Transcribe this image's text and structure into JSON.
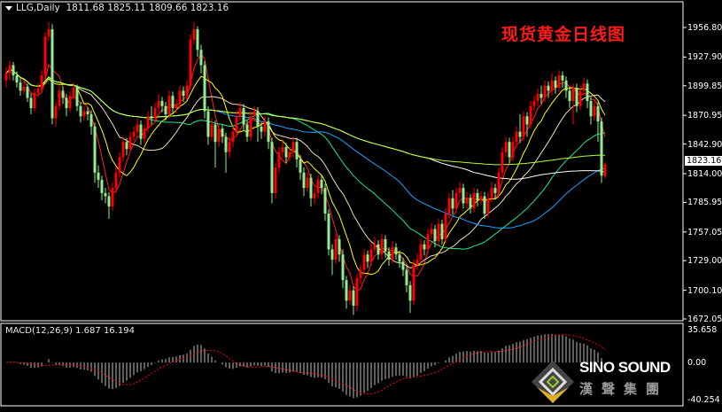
{
  "header": {
    "symbol": "LLG,Daily",
    "ohlc_text": "1811.68 1825.11 1809.66 1823.16"
  },
  "title": "现货黄金日线图",
  "current_price": "1823.16",
  "logo": {
    "brand": "SINO SOUND",
    "chinese": "漢聲集團"
  },
  "chart_data": [
    {
      "type": "candlestick",
      "title": "现货黄金日线图",
      "symbol": "LLG",
      "timeframe": "Daily",
      "y_ticks": [
        "1956.80",
        "1927.90",
        "1899.85",
        "1870.95",
        "1842.90",
        "1814.00",
        "1785.95",
        "1757.05",
        "1729.00",
        "1700.10",
        "1672.05"
      ],
      "ylim": [
        1672.05,
        1956.8
      ],
      "colors": {
        "up": "#ff0000",
        "down": "#90ee90",
        "background": "#000000",
        "axis": "#ffffff"
      },
      "overlays": [
        {
          "kind": "moving-average",
          "color": "#ff2020"
        },
        {
          "kind": "moving-average",
          "color": "#ffff00"
        },
        {
          "kind": "moving-average",
          "color": "#f5deb3"
        },
        {
          "kind": "moving-average",
          "color": "#1ee68c"
        },
        {
          "kind": "moving-average",
          "color": "#1ea0ff"
        },
        {
          "kind": "moving-average",
          "color": "#ffffff"
        },
        {
          "kind": "moving-average",
          "color": "#b4ff30"
        }
      ],
      "ohlc": [
        [
          1905,
          1918,
          1898,
          1912
        ],
        [
          1912,
          1924,
          1906,
          1920
        ],
        [
          1920,
          1923,
          1905,
          1910
        ],
        [
          1910,
          1914,
          1898,
          1903
        ],
        [
          1903,
          1907,
          1890,
          1895
        ],
        [
          1895,
          1904,
          1891,
          1899
        ],
        [
          1899,
          1902,
          1884,
          1888
        ],
        [
          1888,
          1892,
          1872,
          1878
        ],
        [
          1878,
          1897,
          1875,
          1893
        ],
        [
          1893,
          1902,
          1889,
          1897
        ],
        [
          1897,
          1915,
          1893,
          1910
        ],
        [
          1910,
          1952,
          1906,
          1948
        ],
        [
          1948,
          1962,
          1944,
          1955
        ],
        [
          1955,
          1960,
          1862,
          1868
        ],
        [
          1868,
          1884,
          1860,
          1880
        ],
        [
          1880,
          1900,
          1876,
          1895
        ],
        [
          1895,
          1899,
          1882,
          1888
        ],
        [
          1888,
          1892,
          1870,
          1878
        ],
        [
          1878,
          1894,
          1874,
          1890
        ],
        [
          1890,
          1903,
          1886,
          1898
        ],
        [
          1898,
          1901,
          1875,
          1880
        ],
        [
          1880,
          1884,
          1864,
          1870
        ],
        [
          1870,
          1880,
          1866,
          1875
        ],
        [
          1875,
          1879,
          1866,
          1872
        ],
        [
          1872,
          1876,
          1852,
          1860
        ],
        [
          1860,
          1864,
          1805,
          1815
        ],
        [
          1815,
          1822,
          1800,
          1808
        ],
        [
          1808,
          1812,
          1788,
          1795
        ],
        [
          1795,
          1800,
          1785,
          1792
        ],
        [
          1792,
          1796,
          1770,
          1782
        ],
        [
          1782,
          1805,
          1778,
          1800
        ],
        [
          1800,
          1820,
          1795,
          1815
        ],
        [
          1815,
          1835,
          1810,
          1830
        ],
        [
          1830,
          1850,
          1826,
          1845
        ],
        [
          1845,
          1849,
          1832,
          1838
        ],
        [
          1838,
          1855,
          1834,
          1850
        ],
        [
          1850,
          1860,
          1846,
          1855
        ],
        [
          1855,
          1868,
          1850,
          1862
        ],
        [
          1862,
          1866,
          1842,
          1848
        ],
        [
          1848,
          1862,
          1844,
          1858
        ],
        [
          1858,
          1875,
          1854,
          1870
        ],
        [
          1870,
          1880,
          1862,
          1868
        ],
        [
          1868,
          1883,
          1864,
          1878
        ],
        [
          1878,
          1892,
          1874,
          1885
        ],
        [
          1885,
          1889,
          1874,
          1880
        ],
        [
          1880,
          1884,
          1866,
          1872
        ],
        [
          1872,
          1895,
          1868,
          1890
        ],
        [
          1890,
          1894,
          1872,
          1878
        ],
        [
          1878,
          1887,
          1873,
          1882
        ],
        [
          1882,
          1900,
          1878,
          1895
        ],
        [
          1895,
          1899,
          1884,
          1890
        ],
        [
          1890,
          1905,
          1886,
          1900
        ],
        [
          1900,
          1950,
          1896,
          1945
        ],
        [
          1945,
          1962,
          1940,
          1955
        ],
        [
          1955,
          1958,
          1928,
          1935
        ],
        [
          1935,
          1940,
          1912,
          1920
        ],
        [
          1920,
          1924,
          1868,
          1875
        ],
        [
          1875,
          1880,
          1842,
          1850
        ],
        [
          1850,
          1868,
          1846,
          1862
        ],
        [
          1862,
          1866,
          1820,
          1845
        ],
        [
          1845,
          1862,
          1840,
          1858
        ],
        [
          1858,
          1862,
          1844,
          1850
        ],
        [
          1850,
          1854,
          1815,
          1835
        ],
        [
          1835,
          1850,
          1830,
          1845
        ],
        [
          1845,
          1860,
          1840,
          1855
        ],
        [
          1855,
          1876,
          1850,
          1870
        ],
        [
          1870,
          1884,
          1866,
          1878
        ],
        [
          1878,
          1882,
          1856,
          1862
        ],
        [
          1862,
          1866,
          1845,
          1850
        ],
        [
          1850,
          1875,
          1846,
          1870
        ],
        [
          1870,
          1880,
          1865,
          1875
        ],
        [
          1875,
          1879,
          1845,
          1860
        ],
        [
          1860,
          1864,
          1848,
          1855
        ],
        [
          1855,
          1870,
          1850,
          1865
        ],
        [
          1865,
          1869,
          1838,
          1845
        ],
        [
          1845,
          1849,
          1785,
          1795
        ],
        [
          1795,
          1825,
          1790,
          1820
        ],
        [
          1820,
          1840,
          1815,
          1835
        ],
        [
          1835,
          1846,
          1830,
          1840
        ],
        [
          1840,
          1844,
          1824,
          1830
        ],
        [
          1830,
          1840,
          1826,
          1835
        ],
        [
          1835,
          1850,
          1830,
          1845
        ],
        [
          1845,
          1849,
          1820,
          1828
        ],
        [
          1828,
          1832,
          1808,
          1815
        ],
        [
          1815,
          1820,
          1792,
          1800
        ],
        [
          1800,
          1815,
          1796,
          1810
        ],
        [
          1810,
          1814,
          1782,
          1790
        ],
        [
          1790,
          1800,
          1784,
          1795
        ],
        [
          1795,
          1812,
          1790,
          1808
        ],
        [
          1808,
          1812,
          1794,
          1800
        ],
        [
          1800,
          1804,
          1768,
          1775
        ],
        [
          1775,
          1779,
          1734,
          1740
        ],
        [
          1740,
          1745,
          1715,
          1730
        ],
        [
          1730,
          1755,
          1726,
          1750
        ],
        [
          1750,
          1754,
          1728,
          1735
        ],
        [
          1735,
          1740,
          1702,
          1710
        ],
        [
          1710,
          1714,
          1682,
          1690
        ],
        [
          1690,
          1705,
          1686,
          1700
        ],
        [
          1700,
          1704,
          1676,
          1685
        ],
        [
          1685,
          1716,
          1680,
          1712
        ],
        [
          1712,
          1725,
          1706,
          1720
        ],
        [
          1720,
          1740,
          1715,
          1735
        ],
        [
          1735,
          1739,
          1722,
          1728
        ],
        [
          1728,
          1746,
          1724,
          1740
        ],
        [
          1740,
          1752,
          1736,
          1745
        ],
        [
          1745,
          1749,
          1730,
          1735
        ],
        [
          1735,
          1755,
          1730,
          1750
        ],
        [
          1750,
          1754,
          1732,
          1738
        ],
        [
          1738,
          1742,
          1724,
          1730
        ],
        [
          1730,
          1748,
          1726,
          1742
        ],
        [
          1742,
          1746,
          1730,
          1735
        ],
        [
          1735,
          1739,
          1722,
          1728
        ],
        [
          1728,
          1732,
          1714,
          1720
        ],
        [
          1720,
          1724,
          1698,
          1705
        ],
        [
          1705,
          1709,
          1678,
          1690
        ],
        [
          1690,
          1730,
          1686,
          1725
        ],
        [
          1725,
          1736,
          1720,
          1730
        ],
        [
          1730,
          1750,
          1726,
          1745
        ],
        [
          1745,
          1749,
          1734,
          1740
        ],
        [
          1740,
          1760,
          1736,
          1755
        ],
        [
          1755,
          1766,
          1750,
          1760
        ],
        [
          1760,
          1764,
          1742,
          1748
        ],
        [
          1748,
          1770,
          1744,
          1765
        ],
        [
          1765,
          1769,
          1745,
          1750
        ],
        [
          1750,
          1780,
          1746,
          1775
        ],
        [
          1775,
          1795,
          1770,
          1790
        ],
        [
          1790,
          1798,
          1774,
          1780
        ],
        [
          1780,
          1800,
          1776,
          1795
        ],
        [
          1795,
          1806,
          1790,
          1800
        ],
        [
          1800,
          1804,
          1780,
          1785
        ],
        [
          1785,
          1796,
          1780,
          1790
        ],
        [
          1790,
          1794,
          1775,
          1780
        ],
        [
          1780,
          1800,
          1776,
          1795
        ],
        [
          1795,
          1799,
          1782,
          1788
        ],
        [
          1788,
          1797,
          1784,
          1792
        ],
        [
          1792,
          1796,
          1770,
          1775
        ],
        [
          1775,
          1795,
          1771,
          1790
        ],
        [
          1790,
          1806,
          1786,
          1800
        ],
        [
          1800,
          1804,
          1789,
          1795
        ],
        [
          1795,
          1820,
          1790,
          1815
        ],
        [
          1815,
          1840,
          1810,
          1835
        ],
        [
          1835,
          1850,
          1830,
          1845
        ],
        [
          1845,
          1849,
          1824,
          1830
        ],
        [
          1830,
          1850,
          1826,
          1845
        ],
        [
          1845,
          1860,
          1840,
          1855
        ],
        [
          1855,
          1872,
          1844,
          1850
        ],
        [
          1850,
          1875,
          1846,
          1870
        ],
        [
          1870,
          1874,
          1850,
          1862
        ],
        [
          1862,
          1885,
          1858,
          1880
        ],
        [
          1880,
          1890,
          1876,
          1885
        ],
        [
          1885,
          1897,
          1880,
          1892
        ],
        [
          1892,
          1900,
          1882,
          1888
        ],
        [
          1888,
          1905,
          1884,
          1900
        ],
        [
          1900,
          1904,
          1888,
          1895
        ],
        [
          1895,
          1912,
          1890,
          1905
        ],
        [
          1905,
          1909,
          1892,
          1898
        ],
        [
          1898,
          1915,
          1894,
          1910
        ],
        [
          1910,
          1914,
          1898,
          1905
        ],
        [
          1905,
          1909,
          1888,
          1895
        ],
        [
          1895,
          1899,
          1878,
          1885
        ],
        [
          1885,
          1902,
          1862,
          1898
        ],
        [
          1898,
          1902,
          1874,
          1880
        ],
        [
          1880,
          1900,
          1876,
          1895
        ],
        [
          1895,
          1908,
          1890,
          1902
        ],
        [
          1902,
          1906,
          1878,
          1885
        ],
        [
          1885,
          1889,
          1862,
          1870
        ],
        [
          1870,
          1885,
          1866,
          1880
        ],
        [
          1880,
          1884,
          1845,
          1865
        ],
        [
          1865,
          1869,
          1805,
          1812
        ],
        [
          1811.68,
          1825.11,
          1809.66,
          1823.16
        ]
      ]
    },
    {
      "type": "macd",
      "label": "MACD(12,26,9)",
      "values_text": "1.687 16.194",
      "main": 1.687,
      "signal": 16.194,
      "y_ticks": [
        "35.658",
        "0.00",
        "-40.254"
      ],
      "ylim": [
        -40.254,
        35.658
      ],
      "colors": {
        "histogram": "#c0c0c0",
        "signal": "#ff0000"
      }
    }
  ]
}
